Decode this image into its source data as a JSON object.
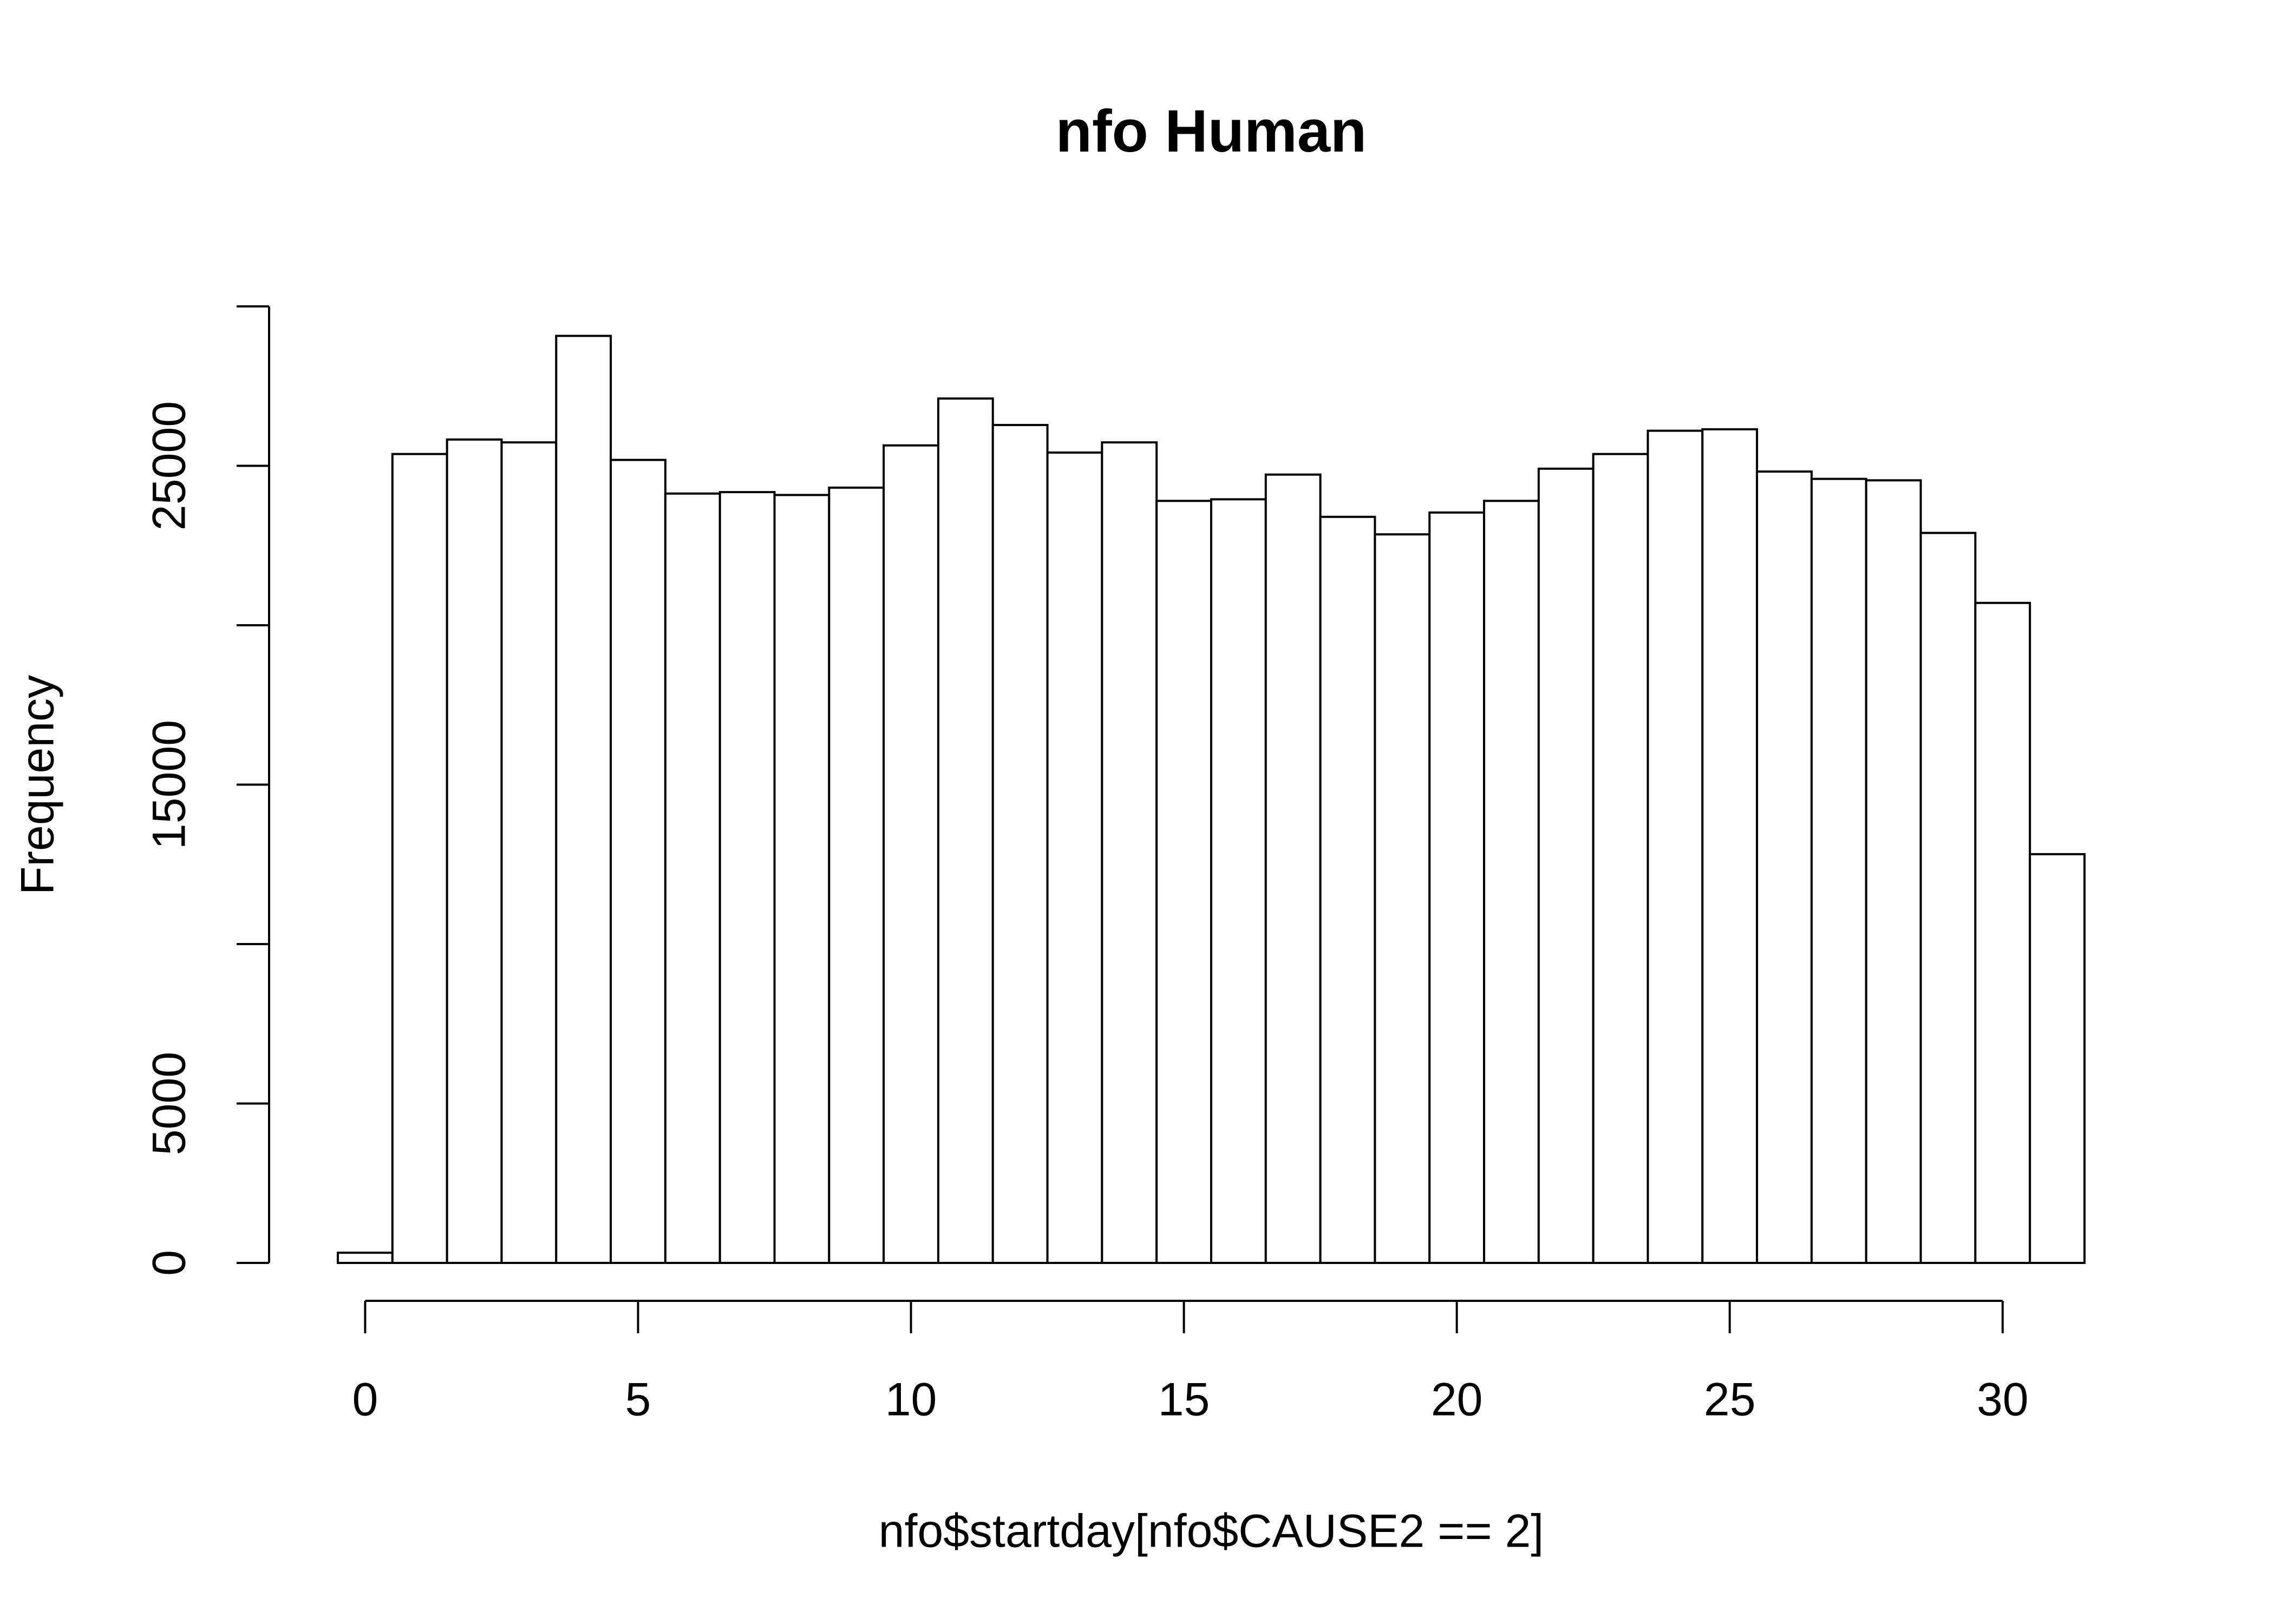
{
  "chart_data": {
    "type": "histogram",
    "title": "nfo Human",
    "xlabel": "nfo$startday[nfo$CAUSE2 == 2]",
    "ylabel": "Frequency",
    "bins": [
      -0.5,
      0.5,
      1.5,
      2.5,
      3.5,
      4.5,
      5.5,
      6.5,
      7.5,
      8.5,
      9.5,
      10.5,
      11.5,
      12.5,
      13.5,
      14.5,
      15.5,
      16.5,
      17.5,
      18.5,
      19.5,
      20.5,
      21.5,
      22.5,
      23.5,
      24.5,
      25.5,
      26.5,
      27.5,
      28.5,
      29.5,
      30.5,
      31.5
    ],
    "counts": [
      320,
      25370,
      25825,
      25735,
      29075,
      25185,
      24130,
      24175,
      24085,
      24315,
      25640,
      27110,
      26280,
      25415,
      25735,
      23900,
      23950,
      24725,
      23400,
      22850,
      23535,
      23900,
      24910,
      25370,
      26100,
      26145,
      24820,
      24590,
      24545,
      22895,
      20700,
      12820
    ],
    "color": "#ffffff",
    "edgecolor": "#000000",
    "xlim": [
      -0.5,
      31.5
    ],
    "xticks": [
      0,
      5,
      10,
      15,
      20,
      25,
      30
    ],
    "ylim": [
      0,
      30000
    ],
    "yticks": [
      0,
      5000,
      {
        "value": 10000,
        "label": null
      },
      15000,
      {
        "value": 20000,
        "label": null
      },
      25000,
      {
        "value": 30000,
        "label": null
      }
    ],
    "grid": false
  }
}
